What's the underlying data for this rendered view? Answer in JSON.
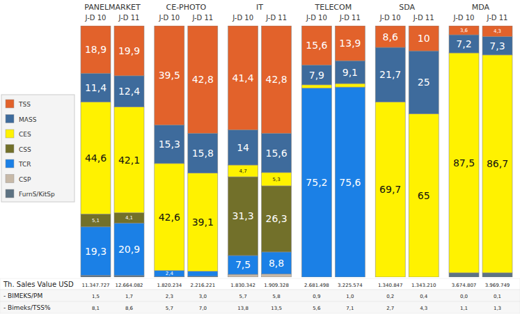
{
  "chart_data": {
    "type": "bar",
    "stacked": true,
    "data_labels": true,
    "grid": false,
    "legend": "left",
    "tick_labels": "x",
    "ylim": [
      0,
      100
    ],
    "groups": [
      "PANELMARKET",
      "CE-PHOTO",
      "IT",
      "TELECOM",
      "SDA",
      "MDA"
    ],
    "categories": [
      "J-D 10",
      "J-D 11",
      "J-D 10",
      "J-D 11",
      "J-D 10",
      "J-D 11",
      "J-D 10",
      "J-D 11",
      "J-D 10",
      "J-D 11",
      "J-D 10",
      "J-D 11"
    ],
    "series": [
      {
        "name": "TSS",
        "color": "#e2622b",
        "values": [
          18.9,
          19.9,
          39.5,
          42.8,
          41.4,
          42.8,
          15.6,
          13.9,
          8.6,
          10,
          3.6,
          4.3
        ],
        "value_labels": [
          "18,9",
          "19,9",
          "39,5",
          "42,8",
          "41,4",
          "42,8",
          "15,6",
          "13,9",
          "8,6",
          "10",
          "3,6",
          "4,3"
        ]
      },
      {
        "name": "MASS",
        "color": "#3e6b9c",
        "values": [
          11.4,
          12.4,
          15.3,
          15.8,
          14,
          15.6,
          7.9,
          9.1,
          21.7,
          25,
          7.2,
          7.3
        ],
        "value_labels": [
          "11,4",
          "12,4",
          "15,3",
          "15,8",
          "14",
          "15,6",
          "7,9",
          "9,1",
          "21,7",
          "25",
          "7,2",
          "7,3"
        ]
      },
      {
        "name": "CES",
        "color": "#fff200",
        "values": [
          44.6,
          42.1,
          42.6,
          39.1,
          4.7,
          5.3,
          1.3,
          1.4,
          69.7,
          65,
          87.5,
          86.7
        ],
        "value_labels": [
          "44,6",
          "42,1",
          "42,6",
          "39,1",
          "4,7",
          "5,3",
          null,
          null,
          "69,7",
          "65",
          "87,5",
          "86,7"
        ]
      },
      {
        "name": "CSS",
        "color": "#72702a",
        "values": [
          5.1,
          4.1,
          0,
          0,
          31.3,
          26.3,
          0,
          0,
          0,
          0,
          0,
          0
        ],
        "value_labels": [
          "5,1",
          "4,1",
          null,
          null,
          "31,3",
          "26,3",
          null,
          null,
          null,
          null,
          null,
          null
        ]
      },
      {
        "name": "TCR",
        "color": "#1b80e6",
        "values": [
          19.3,
          20.9,
          2.4,
          2.0,
          7.5,
          8.8,
          75.2,
          75.6,
          0,
          0,
          0,
          0
        ],
        "value_labels": [
          "19,3",
          "20,9",
          "2,4",
          null,
          "7,5",
          "8,8",
          "75,2",
          "75,6",
          null,
          null,
          null,
          null
        ]
      },
      {
        "name": "CSP",
        "color": "#c7b9a8",
        "values": [
          0,
          0,
          0,
          0,
          1.1,
          1.2,
          0,
          0,
          0,
          0,
          0,
          0
        ],
        "value_labels": [
          null,
          null,
          null,
          null,
          null,
          null,
          null,
          null,
          null,
          null,
          null,
          null
        ]
      },
      {
        "name": "FurnS/KitSp",
        "color": "#5d7282",
        "values": [
          0.7,
          0.6,
          0.2,
          0.3,
          0,
          0,
          0,
          0,
          0,
          0,
          1.7,
          1.7
        ],
        "value_labels": [
          null,
          null,
          null,
          null,
          null,
          null,
          null,
          null,
          null,
          null,
          null,
          null
        ]
      }
    ],
    "table": {
      "rows": [
        {
          "label": "Th. Sales Value USD",
          "values": [
            "11.347.727",
            "12.664.082",
            "1.820.234",
            "2.216.221",
            "1.830.342",
            "1.909.328",
            "2.681.498",
            "3.225.574",
            "1.340.847",
            "1.343.210",
            "3.674.807",
            "3.969.749"
          ]
        },
        {
          "label": "- BIMEKS/PM",
          "values": [
            "1,5",
            "1,7",
            "2,3",
            "3,0",
            "5,7",
            "5,8",
            "0,9",
            "1,0",
            "0,2",
            "0,4",
            "0,0",
            "0,1"
          ]
        },
        {
          "label": "- Bimeks/TSS%",
          "values": [
            "8,1",
            "8,6",
            "5,7",
            "7,0",
            "13,8",
            "13,5",
            "5,6",
            "7,1",
            "2,7",
            "4,3",
            "1,1",
            "1,3"
          ]
        }
      ]
    }
  }
}
